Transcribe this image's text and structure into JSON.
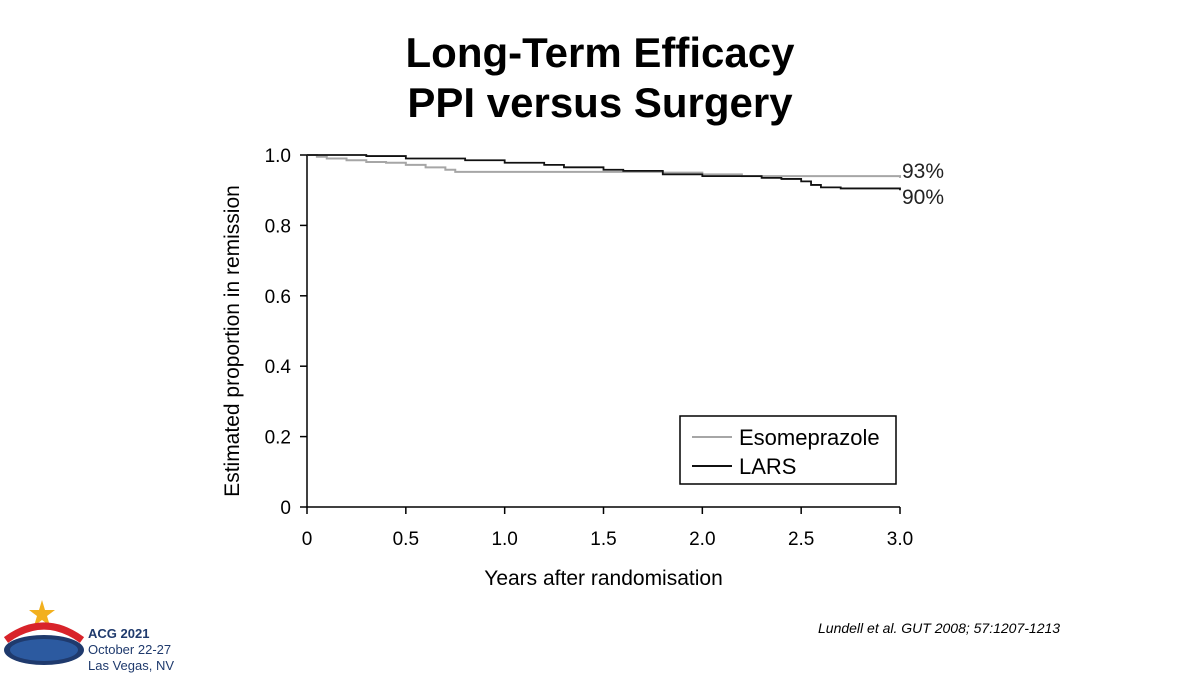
{
  "slide": {
    "title_line1": "Long-Term Efficacy",
    "title_line2": "PPI versus Surgery",
    "citation": "Lundell et al. GUT 2008; 57:1207-1213"
  },
  "footer": {
    "event": "ACG 2021",
    "dates": "October 22-27",
    "location": "Las Vegas, NV",
    "logo_text": "ACG 2021",
    "colors": {
      "logo_blue": "#1f3a6d",
      "logo_red": "#d8232a",
      "logo_gold": "#f2b01e"
    }
  },
  "chart_data": {
    "type": "line",
    "xlabel": "Years after randomisation",
    "ylabel": "Estimated proportion in remission",
    "xlim": [
      0,
      3.0
    ],
    "ylim": [
      0,
      1.0
    ],
    "xticks": [
      "0",
      "0.5",
      "1.0",
      "1.5",
      "2.0",
      "2.5",
      "3.0"
    ],
    "xtick_values": [
      0,
      0.5,
      1.0,
      1.5,
      2.0,
      2.5,
      3.0
    ],
    "yticks": [
      "0",
      "0.2",
      "0.4",
      "0.6",
      "0.8",
      "1.0"
    ],
    "ytick_values": [
      0,
      0.2,
      0.4,
      0.6,
      0.8,
      1.0
    ],
    "grid": false,
    "legend_position": "bottom-right",
    "series": [
      {
        "name": "Esomeprazole",
        "color": "#a6a6a6",
        "end_label": "93%",
        "x": [
          0,
          0.05,
          0.1,
          0.2,
          0.3,
          0.4,
          0.5,
          0.6,
          0.7,
          0.75,
          1.0,
          1.5,
          1.8,
          2.0,
          2.2,
          2.5,
          3.0
        ],
        "y": [
          1.0,
          0.995,
          0.99,
          0.985,
          0.98,
          0.978,
          0.972,
          0.965,
          0.958,
          0.952,
          0.952,
          0.952,
          0.95,
          0.945,
          0.94,
          0.94,
          0.935
        ]
      },
      {
        "name": "LARS",
        "color": "#111111",
        "end_label": "90%",
        "x": [
          0,
          0.3,
          0.5,
          0.8,
          1.0,
          1.2,
          1.3,
          1.5,
          1.6,
          1.8,
          2.0,
          2.3,
          2.4,
          2.5,
          2.55,
          2.6,
          2.7,
          3.0
        ],
        "y": [
          1.0,
          0.997,
          0.99,
          0.985,
          0.978,
          0.972,
          0.965,
          0.958,
          0.955,
          0.945,
          0.94,
          0.935,
          0.932,
          0.925,
          0.915,
          0.908,
          0.905,
          0.9
        ]
      }
    ]
  }
}
